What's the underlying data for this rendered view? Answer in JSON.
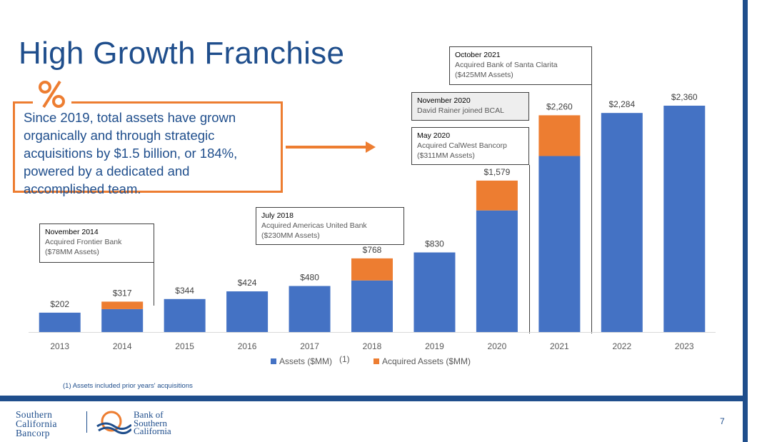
{
  "title": "High Growth Franchise",
  "callout_text": "Since 2019, total assets have grown organically and through strategic acquisitions by $1.5 billion, or 184%, powered by a dedicated and accomplished team.",
  "notes": [
    {
      "title": "November 2014",
      "lines": [
        "Acquired Frontier Bank",
        "($78MM Assets)"
      ]
    },
    {
      "title": "July 2018",
      "lines": [
        "Acquired Americas United Bank",
        "($230MM Assets)"
      ]
    },
    {
      "title": "May 2020",
      "lines": [
        "Acquired CalWest Bancorp",
        "($311MM Assets)"
      ]
    },
    {
      "title": "November 2020",
      "lines": [
        "David Rainer joined BCAL"
      ]
    },
    {
      "title": "October 2021",
      "lines": [
        "Acquired Bank of Santa Clarita",
        "($425MM Assets)"
      ]
    }
  ],
  "legend_footnote_marker": "(1)",
  "footnote": "(1)  Assets included prior years' acquisitions",
  "page_number": "7",
  "logo_left": [
    "Southern",
    "California",
    "Bancorp"
  ],
  "logo_right": [
    "Bank of",
    "Southern",
    "California"
  ],
  "colors": {
    "assets": "#4472c4",
    "acquired": "#ed7d31",
    "brand": "#1f4e8c"
  },
  "chart_data": {
    "type": "bar",
    "stacked": true,
    "categories": [
      "2013",
      "2014",
      "2015",
      "2016",
      "2017",
      "2018",
      "2019",
      "2020",
      "2021",
      "2022",
      "2023"
    ],
    "series": [
      {
        "name": "Assets ($MM)",
        "values": [
          202,
          239,
          344,
          424,
          480,
          538,
          830,
          1268,
          1835,
          2284,
          2360
        ]
      },
      {
        "name": "Acquired Assets ($MM)",
        "values": [
          0,
          78,
          0,
          0,
          0,
          230,
          0,
          311,
          425,
          0,
          0
        ]
      }
    ],
    "total_labels": [
      "$202",
      "$317",
      "$344",
      "$424",
      "$480",
      "$768",
      "$830",
      "$1,579",
      "$2,260",
      "$2,284",
      "$2,360"
    ],
    "ylim": [
      0,
      2360
    ],
    "legend_position": "bottom"
  }
}
